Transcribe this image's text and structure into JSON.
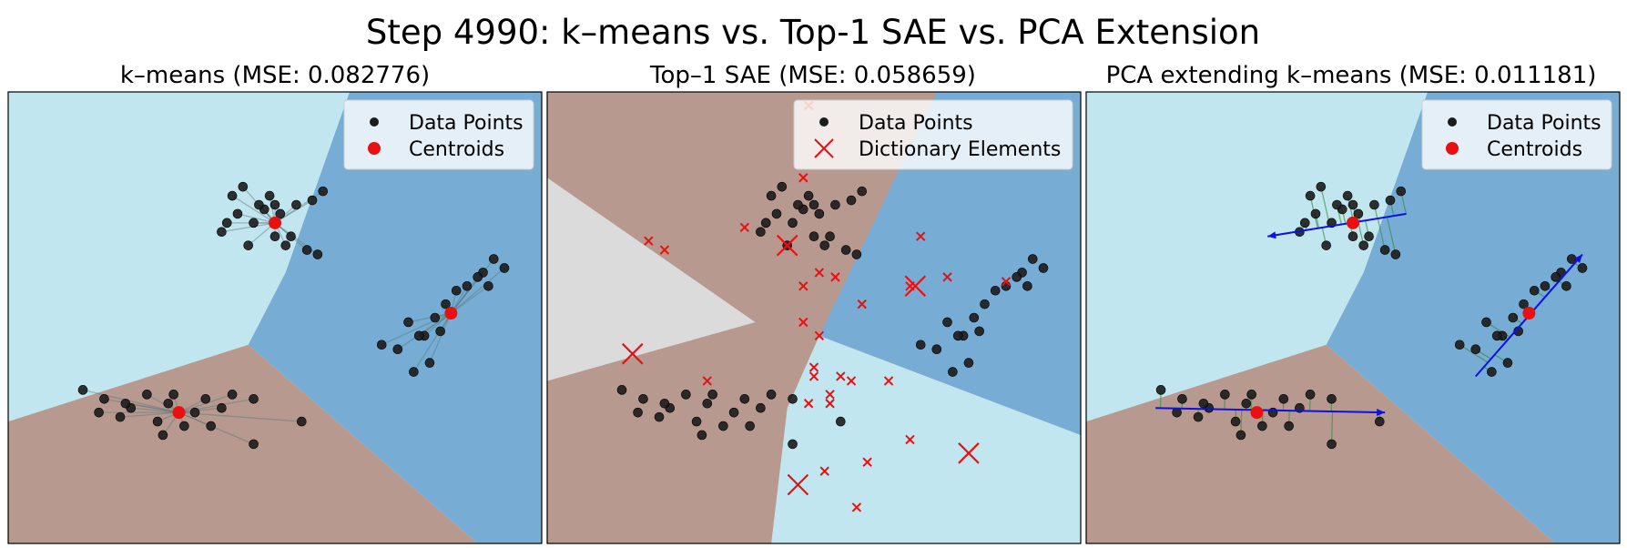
{
  "figure": {
    "suptitle": "Step 4990: k–means vs. Top-1 SAE vs. PCA Extension"
  },
  "colors": {
    "region_light_blue": "#c2e6ef",
    "region_steel_blue": "#77add4",
    "region_rose_brown": "#b89990",
    "region_light_gray": "#dbdbdb",
    "data_point": "#1c1c1c",
    "centroid": "#e81010",
    "pca_arrow": "#1010e0",
    "residual_line_kmeans": "#557777",
    "residual_line_pca": "#2a8a3a"
  },
  "chart_data": [
    {
      "type": "scatter",
      "title": "k–means (MSE: 0.082776)",
      "xlim": [
        0,
        10
      ],
      "ylim": [
        0,
        10
      ],
      "legend_position": "top-right",
      "legend": [
        "Data Points",
        "Centroids"
      ],
      "regions": [
        "light_blue",
        "steel_blue",
        "rose_brown"
      ],
      "series": [
        {
          "name": "Data Points",
          "points": [
            [
              4.6,
              7.1
            ],
            [
              4.8,
              7.4
            ],
            [
              5.1,
              7.3
            ],
            [
              4.2,
              7.7
            ],
            [
              4.4,
              7.9
            ],
            [
              4.9,
              7.7
            ],
            [
              5.4,
              7.5
            ],
            [
              4.5,
              6.6
            ],
            [
              5.2,
              6.6
            ],
            [
              5.0,
              6.8
            ],
            [
              4.1,
              7.1
            ],
            [
              5.6,
              6.5
            ],
            [
              5.8,
              6.4
            ],
            [
              4.0,
              6.9
            ],
            [
              4.3,
              7.3
            ],
            [
              5.0,
              7.5
            ],
            [
              5.9,
              7.8
            ],
            [
              5.7,
              7.6
            ],
            [
              4.7,
              7.5
            ],
            [
              5.3,
              6.8
            ],
            [
              1.8,
              3.2
            ],
            [
              2.3,
              3.0
            ],
            [
              3.0,
              3.1
            ],
            [
              3.5,
              2.9
            ],
            [
              2.1,
              2.8
            ],
            [
              2.6,
              3.3
            ],
            [
              3.3,
              2.6
            ],
            [
              1.4,
              3.4
            ],
            [
              2.8,
              2.7
            ],
            [
              4.6,
              3.2
            ],
            [
              5.5,
              2.7
            ],
            [
              4.6,
              2.2
            ],
            [
              3.1,
              3.3
            ],
            [
              3.7,
              3.2
            ],
            [
              4.0,
              3.0
            ],
            [
              2.9,
              2.4
            ],
            [
              1.7,
              2.9
            ],
            [
              2.2,
              3.1
            ],
            [
              3.8,
              2.6
            ],
            [
              4.2,
              3.3
            ],
            [
              7.8,
              4.6
            ],
            [
              8.2,
              5.3
            ],
            [
              8.6,
              5.7
            ],
            [
              9.1,
              6.3
            ],
            [
              7.5,
              4.9
            ],
            [
              8.4,
              5.6
            ],
            [
              8.9,
              6.0
            ],
            [
              7.3,
              4.3
            ],
            [
              7.9,
              4.0
            ],
            [
              8.1,
              4.7
            ],
            [
              7.6,
              3.8
            ],
            [
              8.8,
              5.9
            ],
            [
              9.3,
              6.1
            ],
            [
              7.0,
              4.4
            ],
            [
              8.0,
              5.0
            ],
            [
              7.7,
              4.6
            ],
            [
              9.0,
              5.7
            ]
          ]
        },
        {
          "name": "Centroids",
          "points": [
            [
              5.0,
              7.1
            ],
            [
              3.2,
              2.9
            ],
            [
              8.3,
              5.1
            ]
          ]
        }
      ]
    },
    {
      "type": "scatter",
      "title": "Top–1 SAE (MSE: 0.058659)",
      "xlim": [
        0,
        10
      ],
      "ylim": [
        0,
        10
      ],
      "legend_position": "top-right",
      "legend": [
        "Data Points",
        "Dictionary Elements"
      ],
      "regions": [
        "rose_brown",
        "light_gray",
        "steel_blue",
        "light_blue"
      ],
      "series": [
        {
          "name": "Data Points",
          "points": [
            [
              4.6,
              7.1
            ],
            [
              4.8,
              7.4
            ],
            [
              5.1,
              7.3
            ],
            [
              4.2,
              7.7
            ],
            [
              4.4,
              7.9
            ],
            [
              4.9,
              7.7
            ],
            [
              5.4,
              7.5
            ],
            [
              4.5,
              6.6
            ],
            [
              5.2,
              6.6
            ],
            [
              5.0,
              6.8
            ],
            [
              4.1,
              7.1
            ],
            [
              5.6,
              6.5
            ],
            [
              5.8,
              6.4
            ],
            [
              4.0,
              6.9
            ],
            [
              4.3,
              7.3
            ],
            [
              5.0,
              7.5
            ],
            [
              5.9,
              7.8
            ],
            [
              5.7,
              7.6
            ],
            [
              4.7,
              7.5
            ],
            [
              5.3,
              6.8
            ],
            [
              1.8,
              3.2
            ],
            [
              2.3,
              3.0
            ],
            [
              3.0,
              3.1
            ],
            [
              3.5,
              2.9
            ],
            [
              2.1,
              2.8
            ],
            [
              2.6,
              3.3
            ],
            [
              3.3,
              2.6
            ],
            [
              1.4,
              3.4
            ],
            [
              2.8,
              2.7
            ],
            [
              4.6,
              3.2
            ],
            [
              5.5,
              2.7
            ],
            [
              4.6,
              2.2
            ],
            [
              3.1,
              3.3
            ],
            [
              3.7,
              3.2
            ],
            [
              4.0,
              3.0
            ],
            [
              2.9,
              2.4
            ],
            [
              1.7,
              2.9
            ],
            [
              2.2,
              3.1
            ],
            [
              3.8,
              2.6
            ],
            [
              4.2,
              3.3
            ],
            [
              7.8,
              4.6
            ],
            [
              8.2,
              5.3
            ],
            [
              8.6,
              5.7
            ],
            [
              9.1,
              6.3
            ],
            [
              7.5,
              4.9
            ],
            [
              8.4,
              5.6
            ],
            [
              8.9,
              6.0
            ],
            [
              7.3,
              4.3
            ],
            [
              7.9,
              4.0
            ],
            [
              8.1,
              4.7
            ],
            [
              7.6,
              3.8
            ],
            [
              8.8,
              5.9
            ],
            [
              9.3,
              6.1
            ],
            [
              7.0,
              4.4
            ],
            [
              8.0,
              5.0
            ],
            [
              7.7,
              4.6
            ],
            [
              9.0,
              5.7
            ]
          ]
        },
        {
          "name": "Dictionary Elements",
          "large": [
            [
              4.5,
              6.6
            ],
            [
              6.9,
              5.7
            ],
            [
              1.6,
              4.2
            ],
            [
              7.9,
              2.0
            ],
            [
              4.7,
              1.3
            ]
          ],
          "small": [
            [
              4.9,
              9.7
            ],
            [
              4.8,
              8.1
            ],
            [
              3.7,
              7.0
            ],
            [
              1.9,
              6.7
            ],
            [
              2.2,
              6.5
            ],
            [
              4.8,
              5.7
            ],
            [
              5.1,
              6.0
            ],
            [
              5.4,
              5.9
            ],
            [
              7.0,
              6.8
            ],
            [
              7.5,
              5.9
            ],
            [
              8.6,
              5.8
            ],
            [
              4.8,
              4.9
            ],
            [
              5.1,
              4.6
            ],
            [
              5.9,
              5.3
            ],
            [
              6.8,
              5.7
            ],
            [
              3.0,
              3.6
            ],
            [
              5.0,
              3.9
            ],
            [
              5.0,
              3.7
            ],
            [
              5.5,
              3.7
            ],
            [
              5.3,
              3.3
            ],
            [
              5.7,
              3.6
            ],
            [
              6.4,
              3.6
            ],
            [
              4.9,
              3.1
            ],
            [
              5.3,
              3.1
            ],
            [
              6.8,
              2.3
            ],
            [
              6.0,
              1.8
            ],
            [
              5.2,
              1.6
            ],
            [
              5.8,
              0.8
            ]
          ]
        }
      ]
    },
    {
      "type": "scatter",
      "title": "PCA extending k–means (MSE: 0.011181)",
      "xlim": [
        0,
        10
      ],
      "ylim": [
        0,
        10
      ],
      "legend_position": "top-right",
      "legend": [
        "Data Points",
        "Centroids"
      ],
      "regions": [
        "light_blue",
        "steel_blue",
        "rose_brown"
      ],
      "series": [
        {
          "name": "Data Points",
          "points": [
            [
              4.6,
              7.1
            ],
            [
              4.8,
              7.4
            ],
            [
              5.1,
              7.3
            ],
            [
              4.2,
              7.7
            ],
            [
              4.4,
              7.9
            ],
            [
              4.9,
              7.7
            ],
            [
              5.4,
              7.5
            ],
            [
              4.5,
              6.6
            ],
            [
              5.2,
              6.6
            ],
            [
              5.0,
              6.8
            ],
            [
              4.1,
              7.1
            ],
            [
              5.6,
              6.5
            ],
            [
              5.8,
              6.4
            ],
            [
              4.0,
              6.9
            ],
            [
              4.3,
              7.3
            ],
            [
              5.0,
              7.5
            ],
            [
              5.9,
              7.8
            ],
            [
              5.7,
              7.6
            ],
            [
              4.7,
              7.5
            ],
            [
              5.3,
              6.8
            ],
            [
              1.8,
              3.2
            ],
            [
              2.3,
              3.0
            ],
            [
              3.0,
              3.1
            ],
            [
              3.5,
              2.9
            ],
            [
              2.1,
              2.8
            ],
            [
              2.6,
              3.3
            ],
            [
              3.3,
              2.6
            ],
            [
              1.4,
              3.4
            ],
            [
              2.8,
              2.7
            ],
            [
              4.6,
              3.2
            ],
            [
              5.5,
              2.7
            ],
            [
              4.6,
              2.2
            ],
            [
              3.1,
              3.3
            ],
            [
              3.7,
              3.2
            ],
            [
              4.0,
              3.0
            ],
            [
              2.9,
              2.4
            ],
            [
              1.7,
              2.9
            ],
            [
              2.2,
              3.1
            ],
            [
              3.8,
              2.6
            ],
            [
              4.2,
              3.3
            ],
            [
              7.8,
              4.6
            ],
            [
              8.2,
              5.3
            ],
            [
              8.6,
              5.7
            ],
            [
              9.1,
              6.3
            ],
            [
              7.5,
              4.9
            ],
            [
              8.4,
              5.6
            ],
            [
              8.9,
              6.0
            ],
            [
              7.3,
              4.3
            ],
            [
              7.9,
              4.0
            ],
            [
              8.1,
              4.7
            ],
            [
              7.6,
              3.8
            ],
            [
              8.8,
              5.9
            ],
            [
              9.3,
              6.1
            ],
            [
              7.0,
              4.4
            ],
            [
              8.0,
              5.0
            ],
            [
              7.7,
              4.6
            ],
            [
              9.0,
              5.7
            ]
          ]
        },
        {
          "name": "Centroids",
          "points": [
            [
              5.0,
              7.1
            ],
            [
              3.2,
              2.9
            ],
            [
              8.3,
              5.1
            ]
          ]
        },
        {
          "name": "PCA directions",
          "arrows": [
            [
              [
                6.0,
                7.3
              ],
              [
                3.4,
                6.8
              ]
            ],
            [
              [
                1.3,
                3.0
              ],
              [
                5.6,
                2.9
              ]
            ],
            [
              [
                7.3,
                3.7
              ],
              [
                9.3,
                6.4
              ]
            ]
          ]
        }
      ]
    }
  ]
}
